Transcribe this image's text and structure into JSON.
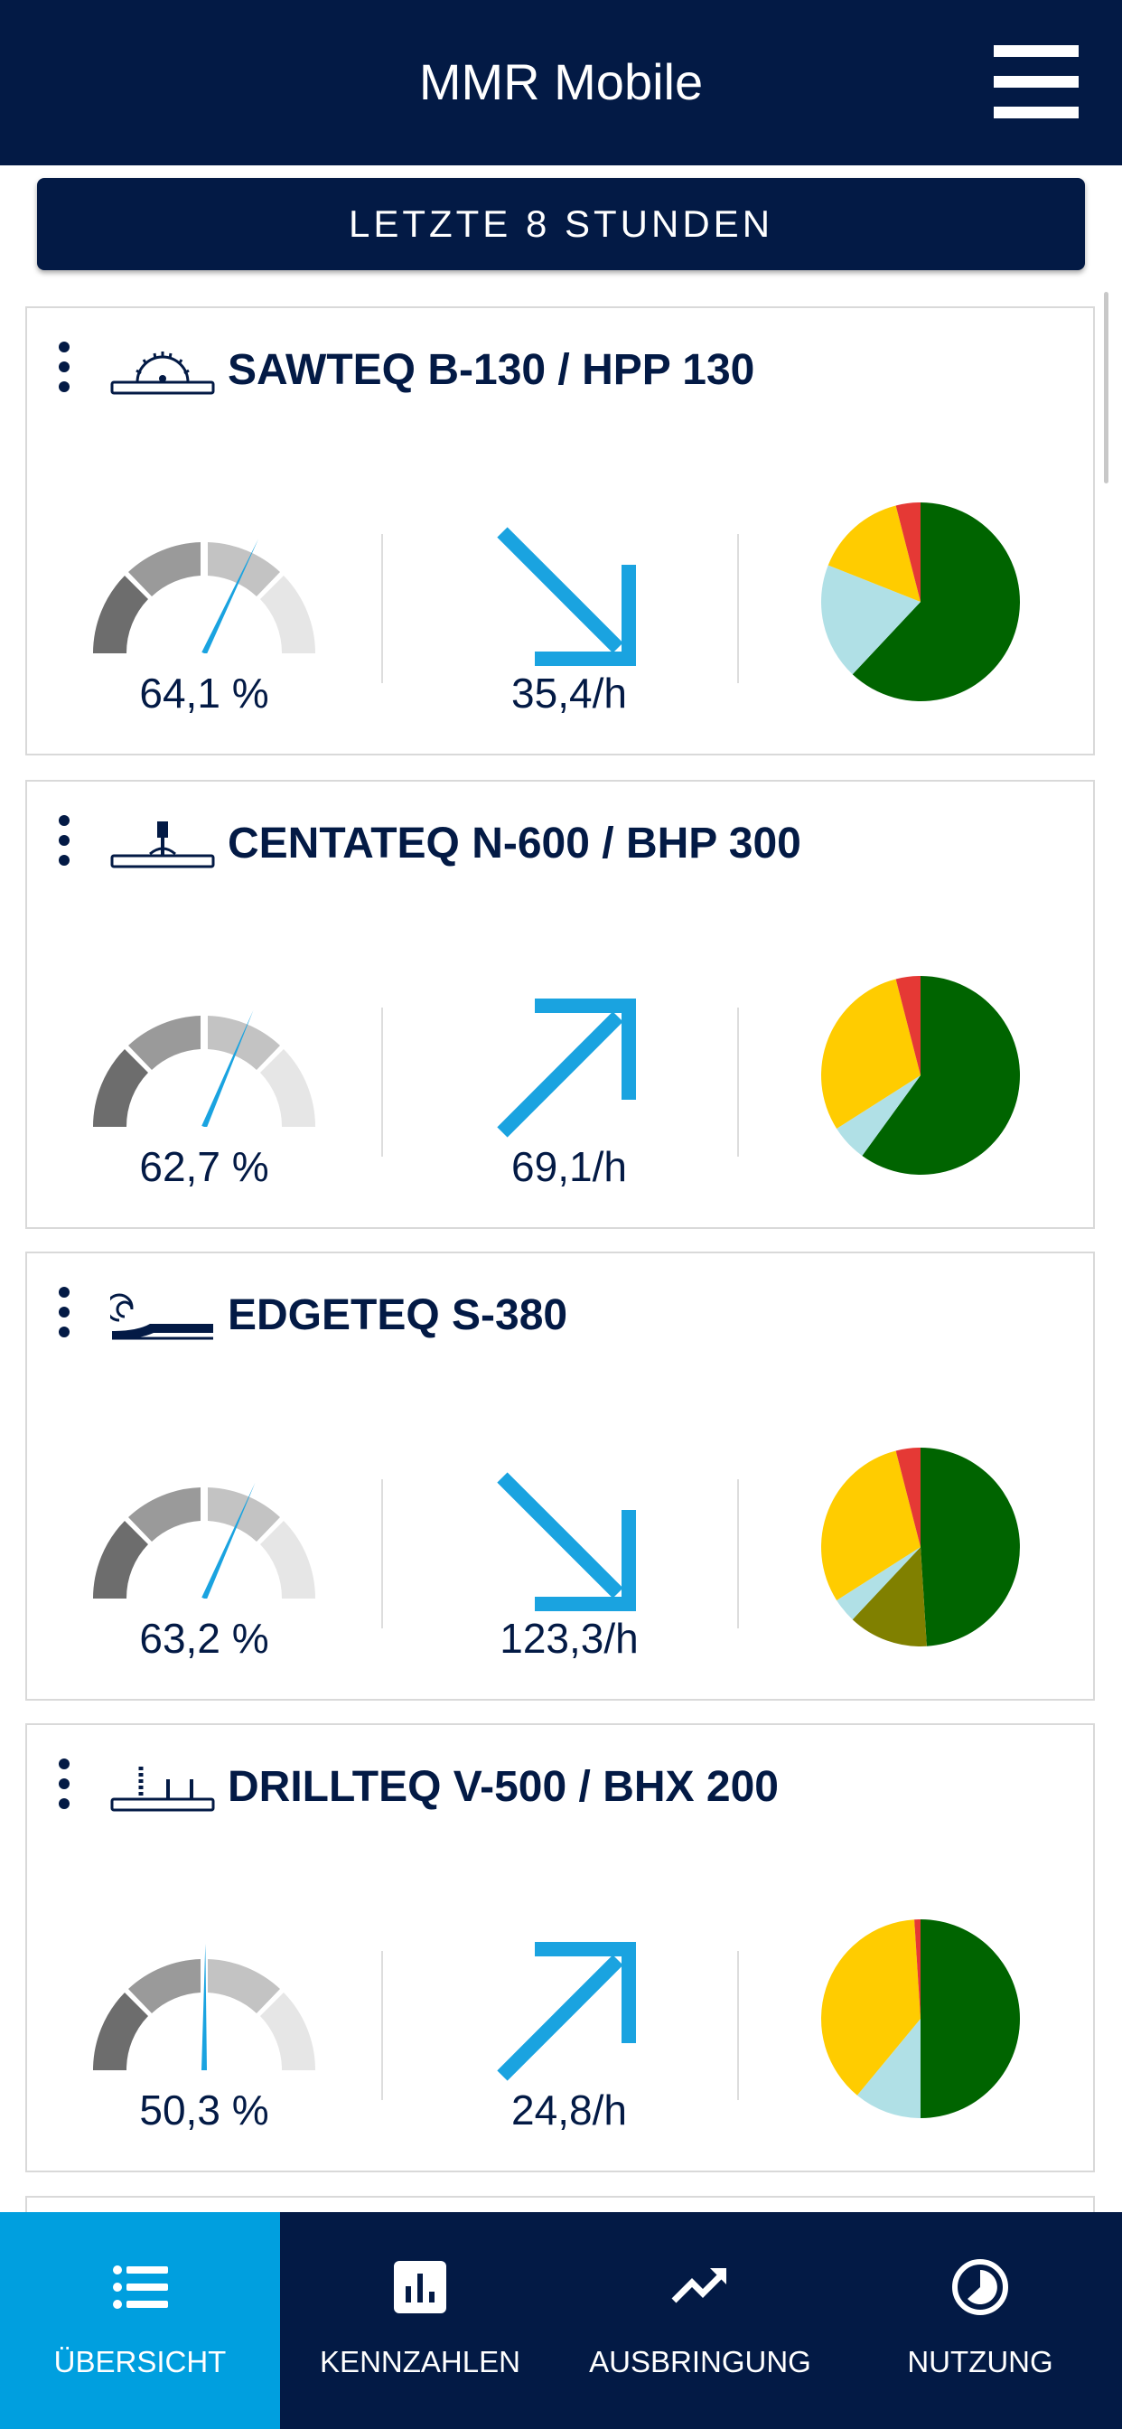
{
  "header": {
    "title": "MMR Mobile",
    "menu_icon": "hamburger-icon"
  },
  "time_filter": {
    "label": "LETZTE 8 STUNDEN"
  },
  "machines": [
    {
      "name": "SAWTEQ B-130 / HPP 130",
      "icon": "saw-machine-icon",
      "utilization_percent": 64.1,
      "utilization_label": "64,1 %",
      "rate_label": "35,4/h",
      "trend": "down",
      "pie": [
        {
          "color": "#006400",
          "fraction": 0.62
        },
        {
          "color": "#b0e0e6",
          "fraction": 0.19
        },
        {
          "color": "#ffcc00",
          "fraction": 0.15
        },
        {
          "color": "#e53935",
          "fraction": 0.04
        }
      ]
    },
    {
      "name": "CENTATEQ N-600 / BHP 300",
      "icon": "cnc-machine-icon",
      "utilization_percent": 62.7,
      "utilization_label": "62,7 %",
      "rate_label": "69,1/h",
      "trend": "up",
      "pie": [
        {
          "color": "#006400",
          "fraction": 0.6
        },
        {
          "color": "#b0e0e6",
          "fraction": 0.06
        },
        {
          "color": "#ffcc00",
          "fraction": 0.3
        },
        {
          "color": "#e53935",
          "fraction": 0.04
        }
      ]
    },
    {
      "name": "EDGETEQ S-380",
      "icon": "edgebander-icon",
      "utilization_percent": 63.2,
      "utilization_label": "63,2 %",
      "rate_label": "123,3/h",
      "trend": "down",
      "pie": [
        {
          "color": "#006400",
          "fraction": 0.49
        },
        {
          "color": "#808000",
          "fraction": 0.13
        },
        {
          "color": "#b0e0e6",
          "fraction": 0.04
        },
        {
          "color": "#ffcc00",
          "fraction": 0.3
        },
        {
          "color": "#e53935",
          "fraction": 0.04
        }
      ]
    },
    {
      "name": "DRILLTEQ V-500 / BHX 200",
      "icon": "drill-machine-icon",
      "utilization_percent": 50.3,
      "utilization_label": "50,3 %",
      "rate_label": "24,8/h",
      "trend": "up",
      "pie": [
        {
          "color": "#006400",
          "fraction": 0.5
        },
        {
          "color": "#b0e0e6",
          "fraction": 0.11
        },
        {
          "color": "#ffcc00",
          "fraction": 0.38
        },
        {
          "color": "#e53935",
          "fraction": 0.01
        }
      ]
    }
  ],
  "bottom_nav": [
    {
      "label": "ÜBERSICHT",
      "icon": "list-icon",
      "active": true
    },
    {
      "label": "KENNZAHLEN",
      "icon": "bar-chart-icon",
      "active": false
    },
    {
      "label": "AUSBRINGUNG",
      "icon": "trend-icon",
      "active": false
    },
    {
      "label": "NUTZUNG",
      "icon": "usage-clock-icon",
      "active": false
    }
  ],
  "colors": {
    "navy": "#031a45",
    "accent": "#009fdf",
    "gauge_needle": "#1aa3e0"
  }
}
